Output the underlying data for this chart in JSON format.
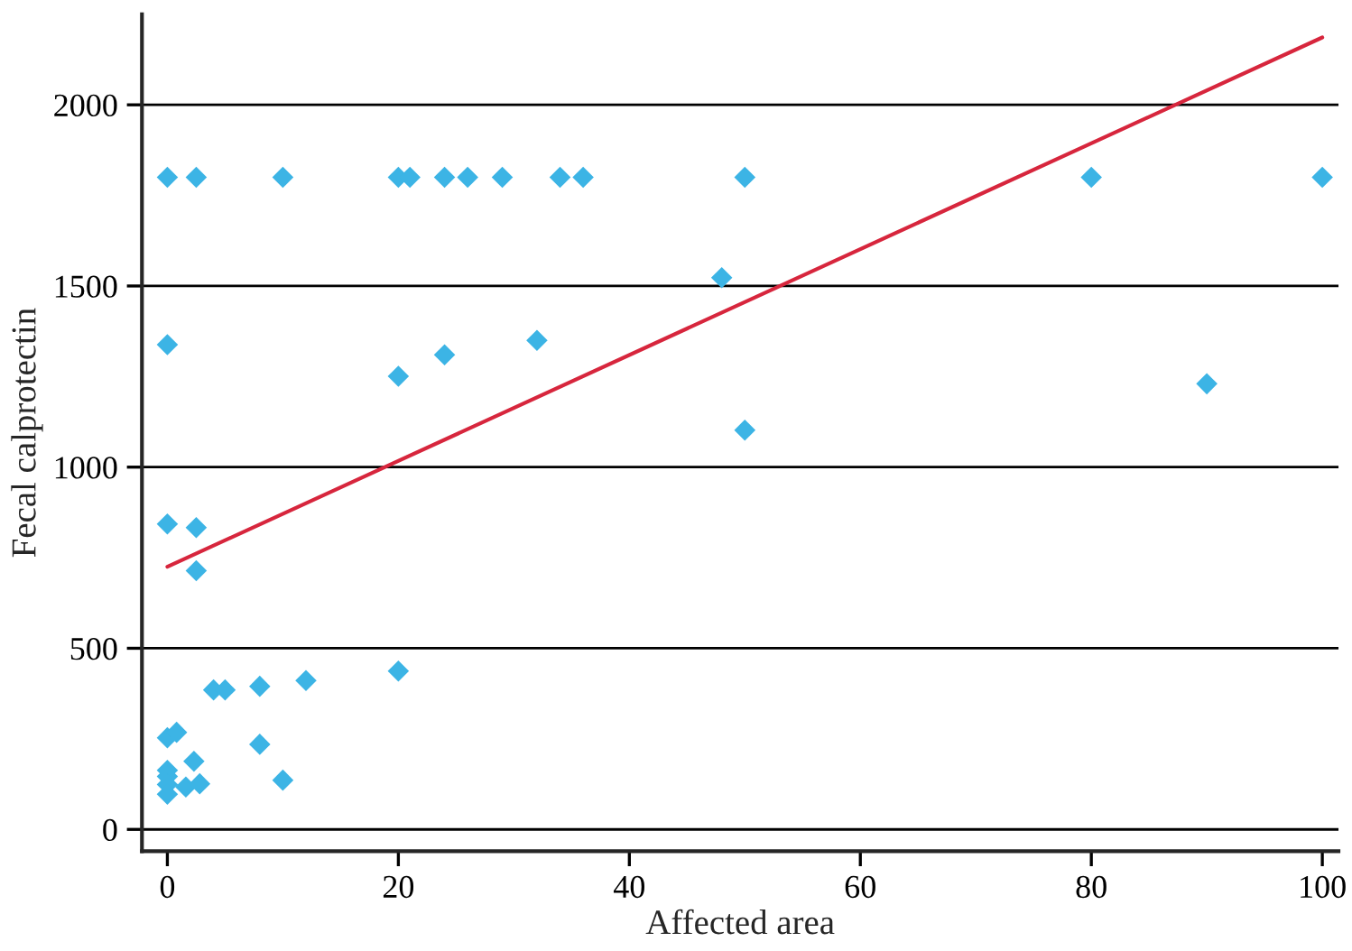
{
  "chart_data": {
    "type": "scatter",
    "xlabel": "Affected area",
    "ylabel": "Fecal calprotectin",
    "xlim": [
      -2.2,
      101.4
    ],
    "ylim": [
      -60,
      2250
    ],
    "xticks": [
      0,
      20,
      40,
      60,
      80,
      100
    ],
    "yticks": [
      0,
      500,
      1000,
      1500,
      2000
    ],
    "grid": "y",
    "series": [
      {
        "marker": "diamond",
        "color": "#3cb4e5",
        "x": [
          0,
          2.5,
          10,
          20,
          21,
          24,
          26,
          29,
          34,
          36,
          50,
          80,
          100,
          48,
          0,
          24,
          32,
          20,
          50,
          90,
          0,
          2.5,
          2.5,
          4,
          5,
          8,
          12,
          20,
          0,
          0.8,
          2.3,
          8,
          10,
          1.6,
          2.8,
          0,
          0,
          0,
          0
        ],
        "values": [
          1800,
          1800,
          1800,
          1800,
          1800,
          1800,
          1800,
          1800,
          1800,
          1800,
          1800,
          1800,
          1800,
          1523,
          1338,
          1310,
          1350,
          1251,
          1102,
          1230,
          843,
          833,
          714,
          385,
          385,
          395,
          411,
          437,
          253,
          268,
          188,
          235,
          136,
          117,
          126,
          163,
          146,
          124,
          97
        ]
      },
      {
        "type": "line",
        "color": "#d7263d",
        "x": [
          0,
          100
        ],
        "values": [
          725,
          2186
        ]
      }
    ]
  }
}
